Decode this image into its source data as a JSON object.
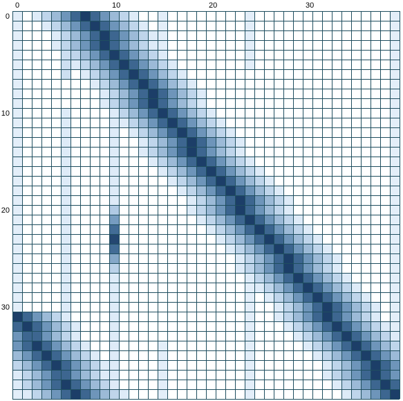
{
  "chart_data": {
    "type": "heatmap",
    "title": "",
    "xlabel": "",
    "ylabel": "",
    "rows": 40,
    "cols": 40,
    "x_ticks": [
      0,
      10,
      20,
      30
    ],
    "y_ticks": [
      0,
      10,
      20,
      30
    ],
    "x_tick_labels": [
      "0",
      "10",
      "20",
      "30"
    ],
    "y_tick_labels": [
      "0",
      "10",
      "20",
      "30"
    ],
    "value_range": [
      0,
      1
    ],
    "grid": true,
    "colors": {
      "grid": "#1f4e5f",
      "low": "#ffffff",
      "high": "#1c4470"
    },
    "bands": [
      {
        "name": "main-diagonal",
        "start_row": 0,
        "start_col": 7,
        "end_row": 39,
        "end_col": 39,
        "peak": 1.0
      },
      {
        "name": "wrap-diagonal",
        "start_row": 31,
        "start_col": 0,
        "end_row": 39,
        "end_col": 6,
        "peak": 1.0
      }
    ],
    "stripes": [
      {
        "col": 0,
        "row_start": 0,
        "row_end": 39,
        "value": 0.12
      },
      {
        "col": 5,
        "row_start": 0,
        "row_end": 6,
        "value": 0.22
      },
      {
        "col": 5,
        "row_start": 10,
        "row_end": 39,
        "value": 0.14
      },
      {
        "col": 10,
        "row_start": 10,
        "row_end": 39,
        "value": 0.14
      },
      {
        "col": 15,
        "row_start": 0,
        "row_end": 4,
        "value": 0.12
      },
      {
        "col": 15,
        "row_start": 34,
        "row_end": 39,
        "value": 0.12
      },
      {
        "col": 24,
        "row_start": 0,
        "row_end": 5,
        "value": 0.12
      },
      {
        "col": 24,
        "row_start": 27,
        "row_end": 39,
        "value": 0.12
      },
      {
        "col": 39,
        "row_start": 0,
        "row_end": 39,
        "value": 0.12
      }
    ],
    "hotspots": [
      {
        "row": 20,
        "col": 10,
        "value": 0.35
      },
      {
        "row": 21,
        "col": 10,
        "value": 0.55
      },
      {
        "row": 22,
        "col": 10,
        "value": 0.75
      },
      {
        "row": 23,
        "col": 10,
        "value": 0.95
      },
      {
        "row": 24,
        "col": 10,
        "value": 0.75
      },
      {
        "row": 25,
        "col": 10,
        "value": 0.5
      },
      {
        "row": 26,
        "col": 10,
        "value": 0.3
      }
    ]
  }
}
